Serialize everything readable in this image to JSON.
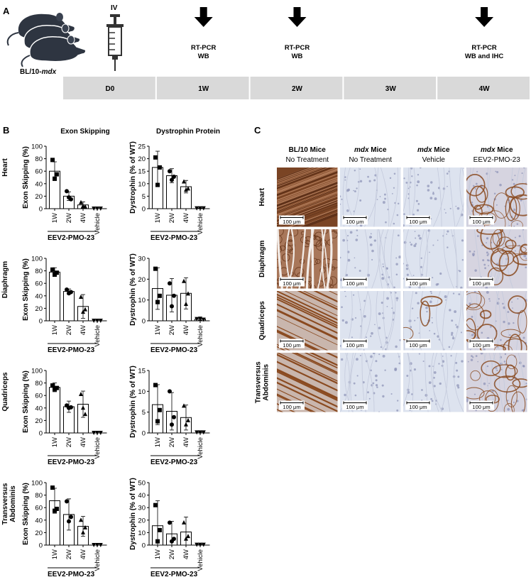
{
  "panel_a": {
    "letter": "A",
    "mouse_label_prefix": "BL/10-",
    "mouse_label_italic": "mdx",
    "injection": {
      "label": "IV",
      "icon": "syringe-icon"
    },
    "timepoints": [
      {
        "label": "D0"
      },
      {
        "label": "1W",
        "assay_lines": [
          "RT-PCR",
          "WB"
        ]
      },
      {
        "label": "2W",
        "assay_lines": [
          "RT-PCR",
          "WB"
        ]
      },
      {
        "label": "3W"
      },
      {
        "label": "4W",
        "assay_lines": [
          "RT-PCR",
          "WB and IHC"
        ]
      }
    ],
    "timeline_fill": "#d9d9d9"
  },
  "panel_b": {
    "letter": "B",
    "col_titles": [
      "Exon Skipping",
      "Dystrophin Protein"
    ],
    "group_label": "EEV2-PMO-23"
  },
  "panel_c": {
    "letter": "C",
    "columns": [
      {
        "line1_italic": "",
        "line1": "BL/10 Mice",
        "line2": "No Treatment"
      },
      {
        "line1_italic": "mdx",
        "line1": " Mice",
        "line2": "No Treatment"
      },
      {
        "line1_italic": "mdx",
        "line1": " Mice",
        "line2": "Vehicle"
      },
      {
        "line1_italic": "mdx",
        "line1": " Mice",
        "line2": "EEV2-PMO-23"
      }
    ],
    "rows": [
      [
        "Heart"
      ],
      [
        "Diaphragm"
      ],
      [
        "Quadriceps"
      ],
      [
        "Transversus",
        "Abdominis"
      ]
    ],
    "scale_bar": "100 μm",
    "stain_colors": {
      "background": "#dde3ef",
      "brown": "#8a4a20",
      "dense": "#6b3a1e"
    }
  },
  "chart_data": [
    {
      "type": "bar",
      "tissue": "Heart",
      "measure": "exon_skipping",
      "ylabel": "Exon Skipping (%)",
      "ylim": [
        0,
        100
      ],
      "yticks": [
        0,
        20,
        40,
        60,
        80,
        100
      ],
      "categories": [
        "1W",
        "2W",
        "4W",
        "Vehicle"
      ],
      "values": [
        60,
        20,
        6,
        0
      ],
      "error": [
        15,
        7,
        5,
        0
      ],
      "points": [
        [
          78,
          55,
          48
        ],
        [
          28,
          15,
          18
        ],
        [
          10,
          3,
          4
        ],
        [
          0,
          0,
          0
        ]
      ],
      "row_label": [
        "Heart"
      ]
    },
    {
      "type": "bar",
      "tissue": "Heart",
      "measure": "dystrophin",
      "ylabel": "Dystrophin (% of WT)",
      "ylim": [
        0,
        25
      ],
      "yticks": [
        0,
        5,
        10,
        15,
        20,
        25
      ],
      "categories": [
        "1W",
        "2W",
        "4W",
        "Vehicle"
      ],
      "values": [
        16.5,
        13.2,
        8.8,
        0.1
      ],
      "error": [
        6.5,
        2.8,
        2.5,
        0.1
      ],
      "points": [
        [
          20.5,
          16.5,
          9.5
        ],
        [
          15.0,
          12.8,
          11.5
        ],
        [
          10.8,
          8.0,
          7.5
        ],
        [
          0.1,
          0.1,
          0.1
        ]
      ]
    },
    {
      "type": "bar",
      "tissue": "Diaphragm",
      "measure": "exon_skipping",
      "ylabel": "Exon Skipping (%)",
      "ylim": [
        0,
        100
      ],
      "yticks": [
        0,
        20,
        40,
        60,
        80,
        100
      ],
      "categories": [
        "1W",
        "2W",
        "4W",
        "Vehicle"
      ],
      "values": [
        78,
        47,
        23,
        0
      ],
      "error": [
        7,
        4,
        19,
        0
      ],
      "points": [
        [
          82,
          77,
          74
        ],
        [
          50,
          46,
          44
        ],
        [
          38,
          18,
          14
        ],
        [
          0,
          0,
          0
        ]
      ],
      "row_label": [
        "Diaphragm"
      ]
    },
    {
      "type": "bar",
      "tissue": "Diaphragm",
      "measure": "dystrophin",
      "ylabel": "Dystrophin (% of WT)",
      "ylim": [
        0,
        30
      ],
      "yticks": [
        0,
        10,
        20,
        30
      ],
      "categories": [
        "1W",
        "2W",
        "4W",
        "Vehicle"
      ],
      "values": [
        15.5,
        12.3,
        13.2,
        0.8
      ],
      "error": [
        10,
        8,
        7.5,
        0.5
      ],
      "points": [
        [
          25,
          12,
          9
        ],
        [
          18,
          12,
          7
        ],
        [
          19,
          13,
          8
        ],
        [
          0.8,
          0.5,
          1.0
        ]
      ]
    },
    {
      "type": "bar",
      "tissue": "Quadriceps",
      "measure": "exon_skipping",
      "ylabel": "Exon Skipping (%)",
      "ylim": [
        0,
        100
      ],
      "yticks": [
        0,
        20,
        40,
        60,
        80,
        100
      ],
      "categories": [
        "1W",
        "2W",
        "4W",
        "Vehicle"
      ],
      "values": [
        73,
        42,
        46,
        0
      ],
      "error": [
        7,
        9,
        21,
        0
      ],
      "points": [
        [
          76,
          72,
          70
        ],
        [
          44,
          41,
          40
        ],
        [
          62,
          30,
          40
        ],
        [
          0,
          0,
          0
        ]
      ],
      "row_label": [
        "Quadriceps"
      ]
    },
    {
      "type": "bar",
      "tissue": "Quadriceps",
      "measure": "dystrophin",
      "ylabel": "Dystrophin (% of WT)",
      "ylim": [
        0,
        15
      ],
      "yticks": [
        0,
        5,
        10,
        15
      ],
      "categories": [
        "1W",
        "2W",
        "4W",
        "Vehicle"
      ],
      "values": [
        6.8,
        5.2,
        3.7,
        0.1
      ],
      "error": [
        4.8,
        4.5,
        3.0,
        0.1
      ],
      "points": [
        [
          11.5,
          5.5,
          2.8
        ],
        [
          10.0,
          3.8,
          2.0
        ],
        [
          6.5,
          3.0,
          2.0
        ],
        [
          0.1,
          0.1,
          0.1
        ]
      ]
    },
    {
      "type": "bar",
      "tissue": "Transversus Abdominis",
      "measure": "exon_skipping",
      "ylabel": "Exon Skipping (%)",
      "ylim": [
        0,
        100
      ],
      "yticks": [
        0,
        20,
        40,
        60,
        80,
        100
      ],
      "categories": [
        "1W",
        "2W",
        "4W",
        "Vehicle"
      ],
      "values": [
        71,
        49,
        30,
        0
      ],
      "error": [
        20,
        25,
        16,
        0
      ],
      "points": [
        [
          92,
          58,
          55
        ],
        [
          70,
          45,
          38
        ],
        [
          40,
          28,
          20
        ],
        [
          0,
          0,
          0
        ]
      ],
      "row_label": [
        "Transversus",
        "Abdominis"
      ]
    },
    {
      "type": "bar",
      "tissue": "Transversus Abdominis",
      "measure": "dystrophin",
      "ylabel": "Dystrophin (% of WT)",
      "ylim": [
        0,
        50
      ],
      "yticks": [
        0,
        10,
        20,
        30,
        40,
        50
      ],
      "categories": [
        "1W",
        "2W",
        "4W",
        "Vehicle"
      ],
      "values": [
        15.5,
        9.0,
        10.5,
        0.2
      ],
      "error": [
        20,
        10,
        12,
        0.2
      ],
      "points": [
        [
          32,
          12,
          3
        ],
        [
          18,
          5,
          3
        ],
        [
          18,
          7,
          5
        ],
        [
          0.2,
          0.2,
          0.2
        ]
      ]
    }
  ]
}
